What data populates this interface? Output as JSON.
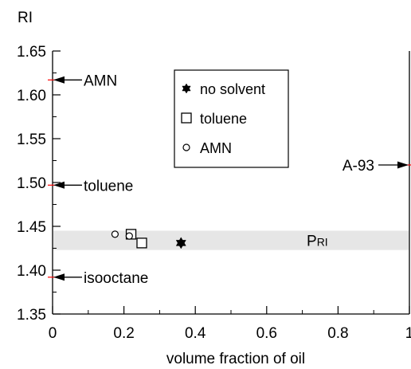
{
  "chart_data": {
    "type": "scatter",
    "title": "",
    "xlabel": "volume fraction of oil",
    "ylabel": "RI",
    "xlim": [
      0,
      1
    ],
    "ylim": [
      1.35,
      1.65
    ],
    "x_ticks": [
      "0",
      "0.2",
      "0.4",
      "0.6",
      "0.8",
      "1"
    ],
    "y_ticks": [
      "1.35",
      "1.40",
      "1.45",
      "1.50",
      "1.55",
      "1.60",
      "1.65"
    ],
    "grid": false,
    "legend": {
      "position": "top-center",
      "entries": [
        "no solvent",
        "toluene",
        "AMN"
      ]
    },
    "series": [
      {
        "name": "no solvent",
        "marker": "star",
        "points": [
          {
            "x": 0.36,
            "y": 1.431
          }
        ]
      },
      {
        "name": "toluene",
        "marker": "square",
        "points": [
          {
            "x": 0.22,
            "y": 1.441
          },
          {
            "x": 0.25,
            "y": 1.431
          }
        ]
      },
      {
        "name": "AMN",
        "marker": "circle",
        "points": [
          {
            "x": 0.175,
            "y": 1.441
          },
          {
            "x": 0.215,
            "y": 1.439
          }
        ]
      }
    ],
    "band": {
      "label": "P",
      "label_subscript": "RI",
      "y_range": [
        1.423,
        1.445
      ],
      "color": "#e6e6e6"
    },
    "annotations": [
      {
        "label": "AMN",
        "x": 0,
        "y": 1.617
      },
      {
        "label": "toluene",
        "x": 0,
        "y": 1.497
      },
      {
        "label": "isooctane",
        "x": 0,
        "y": 1.392
      },
      {
        "label": "A-93",
        "x": 1,
        "y": 1.52
      }
    ],
    "colors": {
      "marker_line": "#000000",
      "reference_tick": "#ff0000",
      "band_fill": "#e6e6e6"
    }
  }
}
